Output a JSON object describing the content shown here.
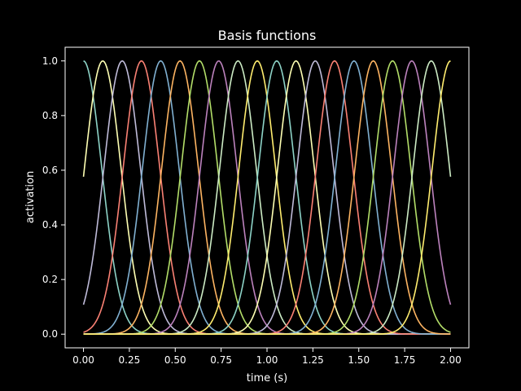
{
  "chart_data": {
    "type": "line",
    "title": "Basis functions",
    "xlabel": "time (s)",
    "ylabel": "activation",
    "xlim": [
      -0.1,
      2.1
    ],
    "ylim": [
      -0.05,
      1.05
    ],
    "xticks": [
      0.0,
      0.25,
      0.5,
      0.75,
      1.0,
      1.25,
      1.5,
      1.75,
      2.0
    ],
    "xtick_labels": [
      "0.00",
      "0.25",
      "0.50",
      "0.75",
      "1.00",
      "1.25",
      "1.50",
      "1.75",
      "2.00"
    ],
    "yticks": [
      0.0,
      0.2,
      0.4,
      0.6,
      0.8,
      1.0
    ],
    "ytick_labels": [
      "0.0",
      "0.2",
      "0.4",
      "0.6",
      "0.8",
      "1.0"
    ],
    "grid": false,
    "legend": false,
    "basis": {
      "count": 20,
      "centers": [
        0.0,
        0.105,
        0.211,
        0.316,
        0.421,
        0.526,
        0.632,
        0.737,
        0.842,
        0.947,
        1.053,
        1.158,
        1.263,
        1.368,
        1.474,
        1.579,
        1.684,
        1.789,
        1.895,
        2.0
      ],
      "width_sigma": 0.1,
      "x_range": [
        0.0,
        2.0
      ]
    },
    "series_colors": [
      "#8dd3c7",
      "#feffb3",
      "#bfbbd9",
      "#fa8174",
      "#81b1d2",
      "#fdb462",
      "#b3de69",
      "#bc82bd",
      "#ccebc4",
      "#ffed6f"
    ]
  },
  "colors": {
    "background": "#000000",
    "axes": "#ffffff",
    "text": "#ffffff"
  }
}
